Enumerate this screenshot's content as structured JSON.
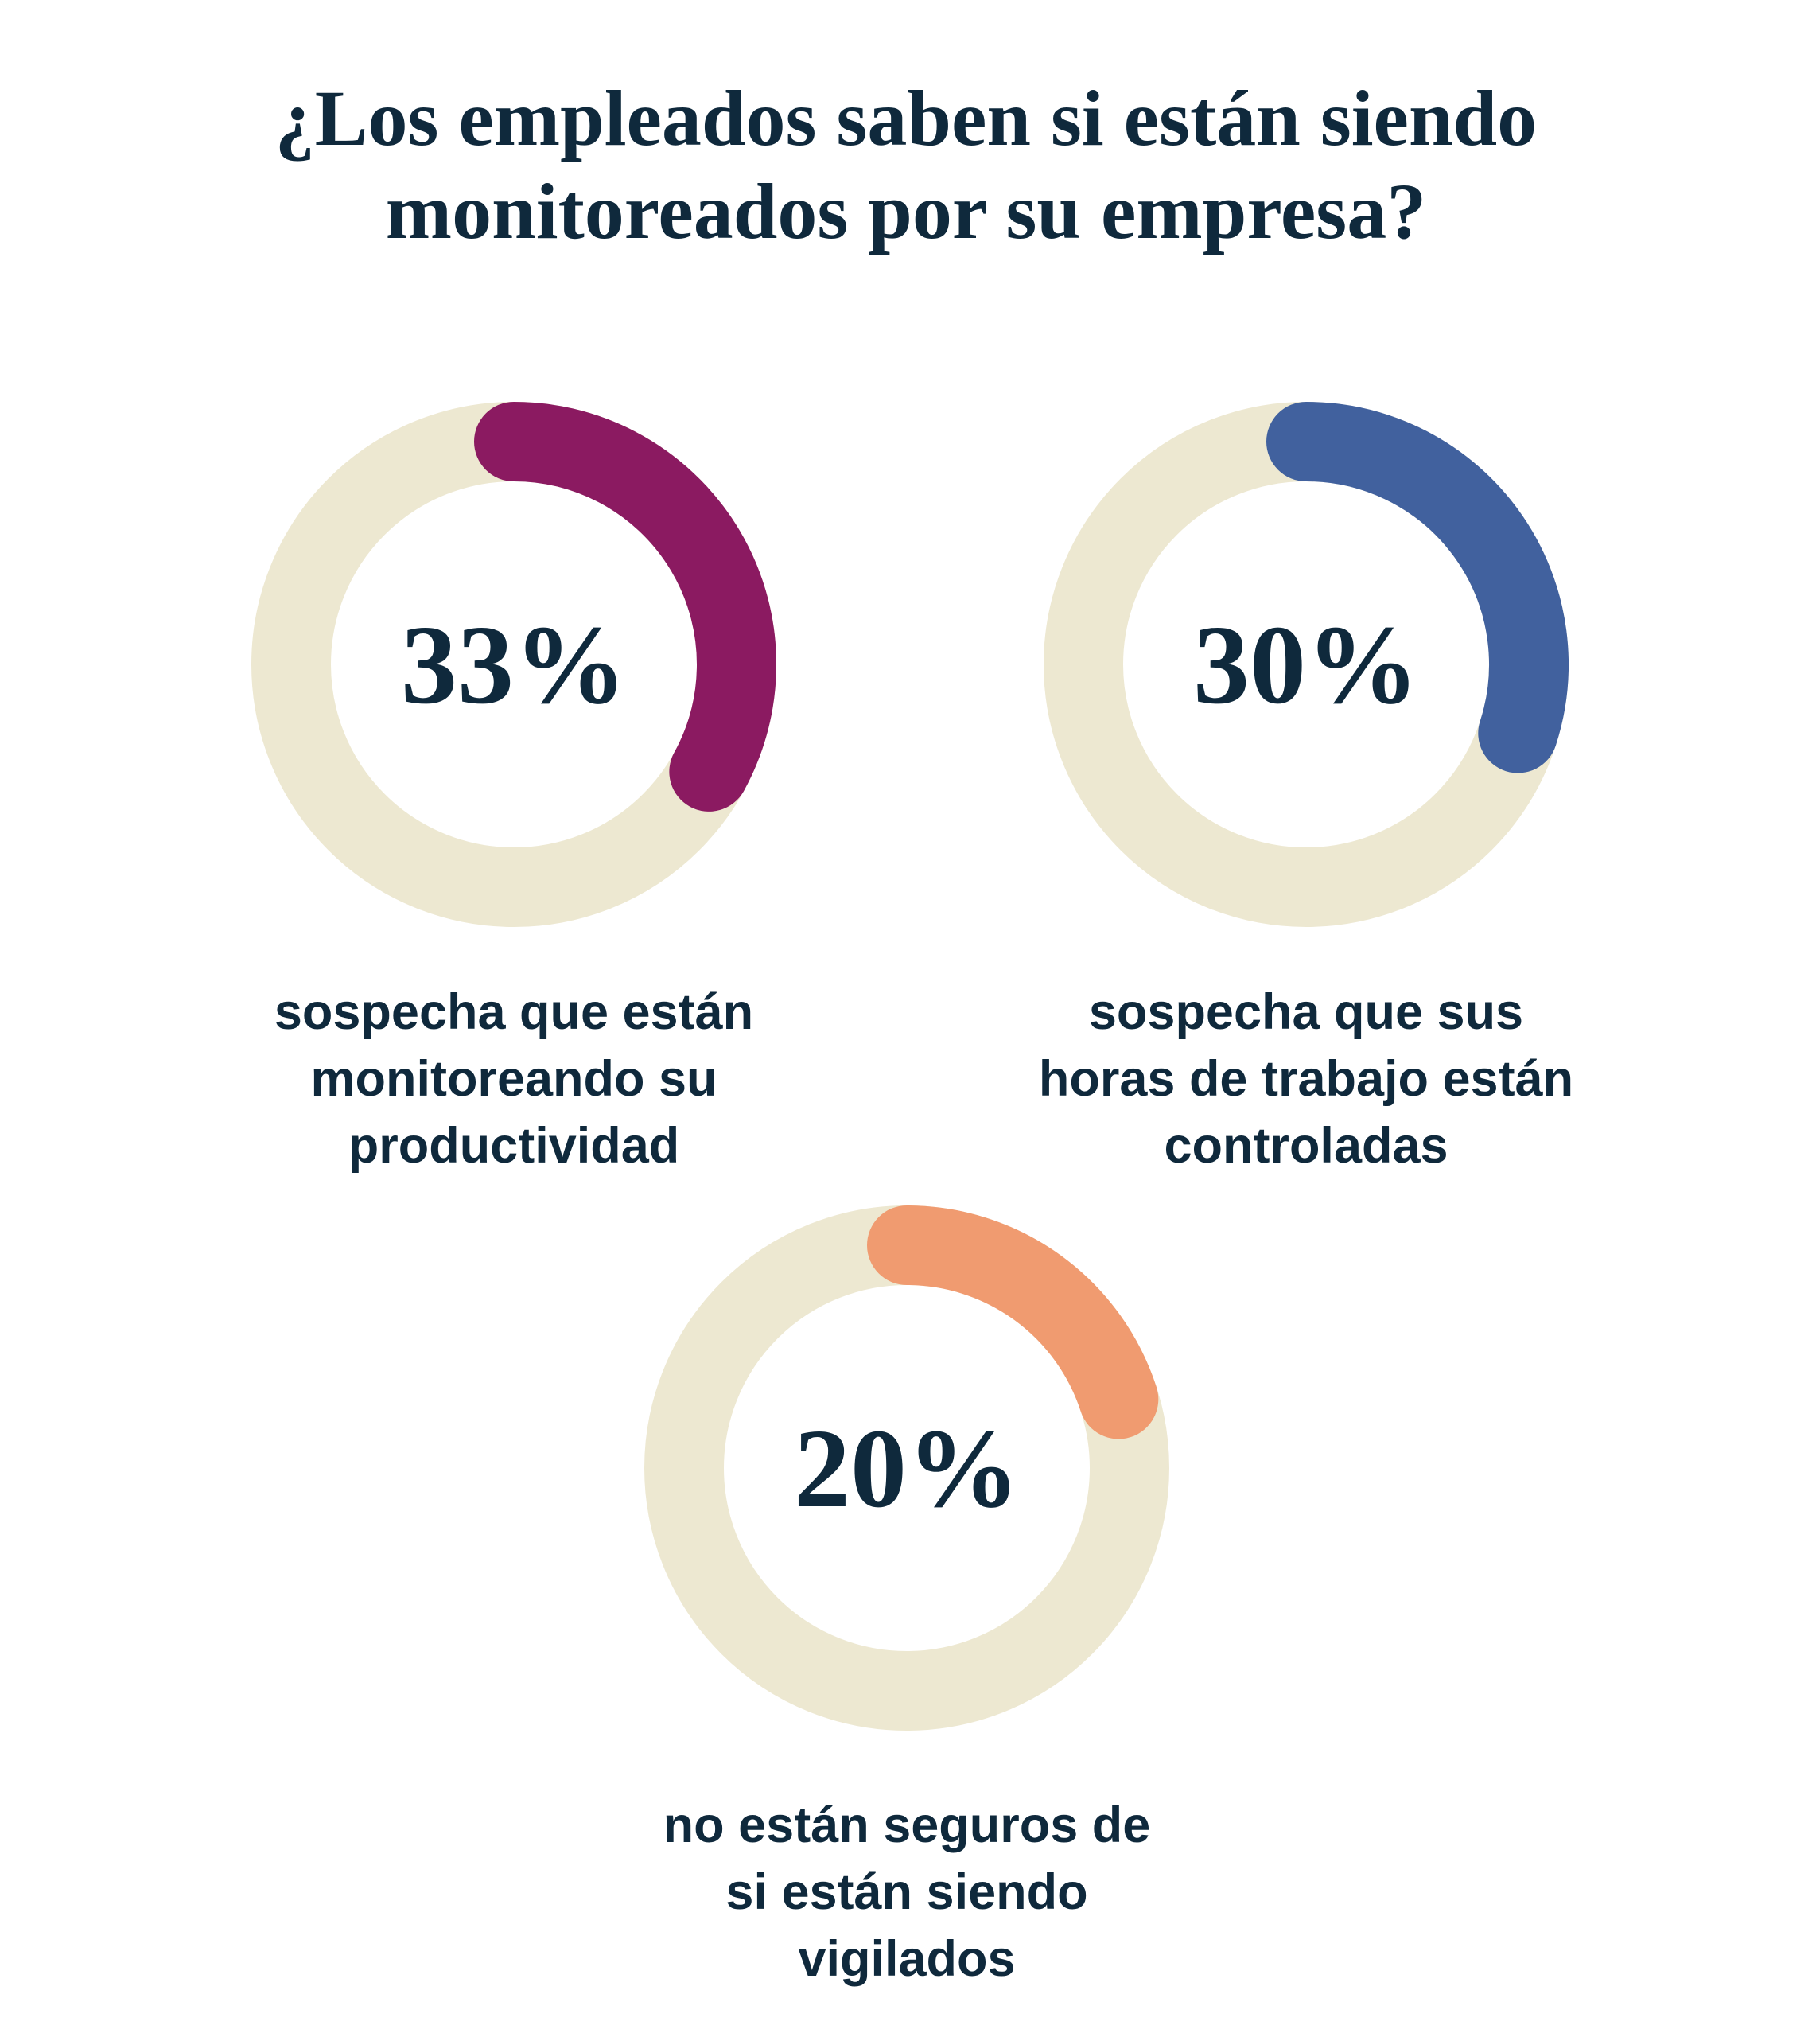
{
  "title": "¿Los empleados saben si están siendo monitoreados por su empresa?",
  "colors": {
    "background": "#FFFFFF",
    "text_navy": "#0F293C",
    "ring_track_beige": "#EDE8D1",
    "arc_magenta": "#8B1A61",
    "arc_blue": "#41619E",
    "arc_orange": "#F09B70"
  },
  "chart_data": [
    {
      "type": "pie",
      "variant": "donut-progress",
      "value": 33,
      "max": 100,
      "value_label": "33%",
      "caption": "sospecha que están monitoreando su productividad",
      "caption_lines": [
        "sospecha que están",
        "monitoreando su",
        "productividad"
      ],
      "arc_color": "#8B1A61",
      "track_color": "#EDE8D1",
      "label_color": "#0F293C",
      "start_angle_deg": 0,
      "direction": "clockwise",
      "legend": "none"
    },
    {
      "type": "pie",
      "variant": "donut-progress",
      "value": 30,
      "max": 100,
      "value_label": "30%",
      "caption": "sospecha que sus horas de trabajo están controladas",
      "caption_lines": [
        "sospecha que sus",
        "horas de trabajo están",
        "controladas"
      ],
      "arc_color": "#41619E",
      "track_color": "#EDE8D1",
      "label_color": "#0F293C",
      "start_angle_deg": 0,
      "direction": "clockwise",
      "legend": "none"
    },
    {
      "type": "pie",
      "variant": "donut-progress",
      "value": 20,
      "max": 100,
      "value_label": "20%",
      "caption": "no están seguros de si están siendo vigilados",
      "caption_lines": [
        "no están seguros de",
        "si están siendo",
        "vigilados"
      ],
      "arc_color": "#F09B70",
      "track_color": "#EDE8D1",
      "label_color": "#0F293C",
      "start_angle_deg": 0,
      "direction": "clockwise",
      "legend": "none"
    }
  ]
}
